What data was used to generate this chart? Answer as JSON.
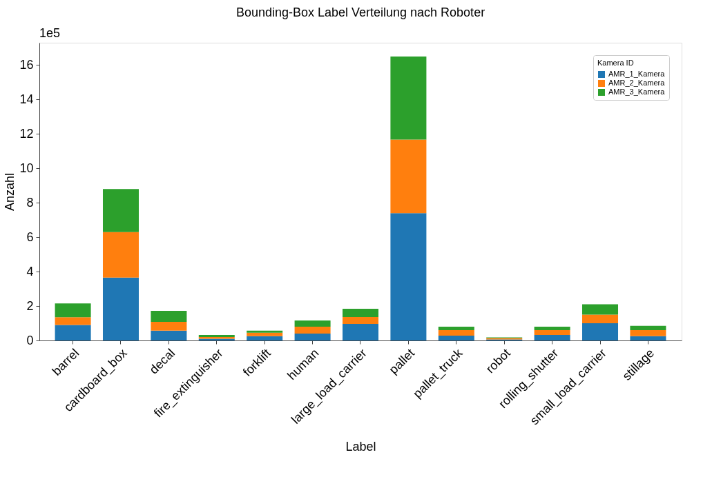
{
  "chart_data": {
    "type": "bar",
    "title": "Bounding-Box Label Verteilung nach Roboter",
    "xlabel": "Label",
    "ylabel": "Anzahl",
    "legend_title": "Kamera ID",
    "categories": [
      "barrel",
      "cardboard_box",
      "decal",
      "fire_extinguisher",
      "forklift",
      "human",
      "large_load_carrier",
      "pallet",
      "pallet_truck",
      "robot",
      "rolling_shutter",
      "small_load_carrier",
      "stillage"
    ],
    "stacked": true,
    "series": [
      {
        "name": "AMR_1_Kamera",
        "color": "#1f77b4",
        "values": [
          0.9,
          3.65,
          0.57,
          0.1,
          0.25,
          0.4,
          0.96,
          7.4,
          0.28,
          0.06,
          0.32,
          1.0,
          0.25
        ]
      },
      {
        "name": "AMR_2_Kamera",
        "color": "#ff7f0e",
        "values": [
          0.45,
          2.65,
          0.51,
          0.1,
          0.2,
          0.4,
          0.4,
          4.27,
          0.32,
          0.08,
          0.28,
          0.5,
          0.35
        ]
      },
      {
        "name": "AMR_3_Kamera",
        "color": "#2ca02c",
        "values": [
          0.8,
          2.5,
          0.64,
          0.12,
          0.12,
          0.36,
          0.48,
          4.83,
          0.2,
          0.04,
          0.2,
          0.6,
          0.25
        ]
      }
    ],
    "ylim": [
      0,
      17.3
    ],
    "yticks": [
      0,
      2,
      4,
      6,
      8,
      10,
      12,
      14,
      16
    ],
    "annotations": [
      "1e5"
    ],
    "grid": false,
    "legend": "top right"
  }
}
